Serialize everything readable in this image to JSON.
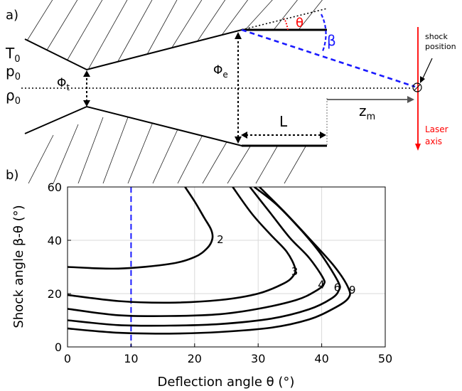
{
  "panel_a": {
    "label": "a)",
    "t0_base": "T",
    "t0_sub": "0",
    "p0_base": "p",
    "p0_sub": "0",
    "rho0_base": "ρ",
    "rho0_sub": "0",
    "phi_t_base": "Φ",
    "phi_t_sub": "t",
    "phi_e_base": "Φ",
    "phi_e_sub": "e",
    "theta": "θ",
    "beta": "β",
    "length": "L",
    "zm_base": "z",
    "zm_sub": "m",
    "shock_line1": "shock",
    "shock_line2": "position",
    "laser_line1": "Laser",
    "laser_line2": "axis",
    "colors": {
      "shock_angle": "#1a1aff",
      "deflection": "#ff0000",
      "laser": "#ff0000"
    }
  },
  "panel_b": {
    "label": "b)"
  },
  "chart_data": {
    "type": "line",
    "xlabel": "Deflection angle θ (°)",
    "ylabel": "Shock angle β-θ (°)",
    "xlim": [
      0,
      50
    ],
    "ylim": [
      0,
      60
    ],
    "xticks": [
      0,
      10,
      20,
      30,
      40,
      50
    ],
    "yticks": [
      0,
      20,
      40,
      60
    ],
    "grid": true,
    "vertical_marker": {
      "x": 10,
      "color": "#1a1aff",
      "style": "dashed"
    },
    "curve_labels": [
      "2",
      "3",
      "4",
      "6",
      "9"
    ],
    "series": [
      {
        "name": "2",
        "x": [
          0,
          8,
          16,
          20,
          22,
          22.8,
          22.6,
          21.5,
          20,
          18.5
        ],
        "y": [
          30.0,
          29.4,
          31.1,
          33.7,
          37.1,
          40.6,
          44.0,
          48.5,
          54.6,
          60
        ]
      },
      {
        "name": "3",
        "x": [
          0,
          8,
          16,
          24,
          30,
          34,
          35.5,
          35.8,
          34.5,
          32,
          29,
          26
        ],
        "y": [
          19.5,
          17.2,
          16.6,
          17.6,
          20.0,
          23.8,
          26.6,
          29.6,
          35.7,
          42.0,
          50.0,
          60
        ]
      },
      {
        "name": "4",
        "x": [
          0,
          8,
          16,
          24,
          30,
          36,
          39,
          40.3,
          40.2,
          38,
          35,
          32,
          28.7
        ],
        "y": [
          14.3,
          11.9,
          11.6,
          12.3,
          14.3,
          17.6,
          20.9,
          23.4,
          25.9,
          33.5,
          40.9,
          50.0,
          60
        ]
      },
      {
        "name": "6",
        "x": [
          0,
          8,
          16,
          24,
          32,
          38,
          41.5,
          42.7,
          42.6,
          40,
          37,
          33,
          29.4
        ],
        "y": [
          10.0,
          8.2,
          8.0,
          8.6,
          10.6,
          14.1,
          18.1,
          21.2,
          24.4,
          34.4,
          43.2,
          53.2,
          60
        ]
      },
      {
        "name": "9",
        "x": [
          0,
          8,
          16,
          24,
          32,
          38,
          42,
          44.2,
          44.2,
          42,
          38,
          34,
          30.2
        ],
        "y": [
          6.9,
          5.3,
          5.0,
          5.6,
          7.2,
          10.3,
          14.6,
          18.3,
          22.1,
          30.2,
          40.8,
          51.0,
          60
        ]
      }
    ]
  }
}
